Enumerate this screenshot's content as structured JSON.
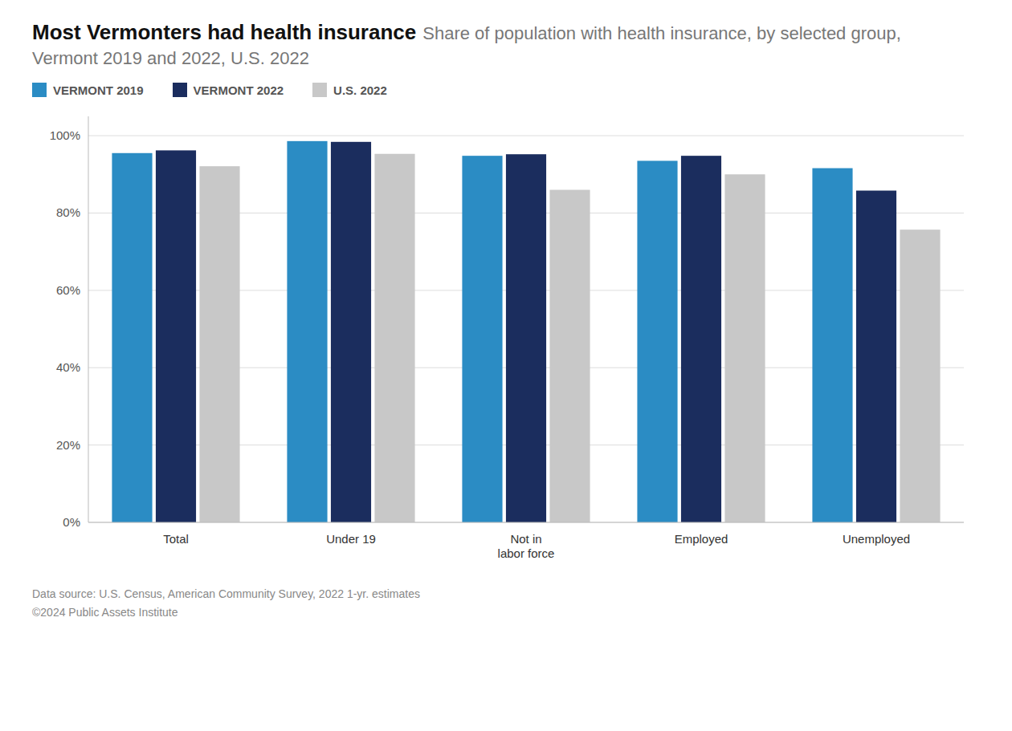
{
  "chart_data": {
    "type": "bar",
    "title": "Most Vermonters had health insurance",
    "subtitle": "Share of population with health insurance, by selected group, Vermont 2019 and 2022, U.S. 2022",
    "categories": [
      "Total",
      "Under 19",
      "Not in\nlabor force",
      "Employed",
      "Unemployed"
    ],
    "series": [
      {
        "name": "VERMONT 2019",
        "color": "#2b8cc4",
        "values": [
          0.955,
          0.986,
          0.948,
          0.935,
          0.916
        ]
      },
      {
        "name": "VERMONT 2022",
        "color": "#1b2d5e",
        "values": [
          0.962,
          0.984,
          0.952,
          0.948,
          0.858
        ]
      },
      {
        "name": "U.S. 2022",
        "color": "#c8c8c8",
        "values": [
          0.921,
          0.953,
          0.86,
          0.9,
          0.757
        ]
      }
    ],
    "ylim": [
      0,
      1.05
    ],
    "yticks": [
      {
        "value": 0,
        "label": "0%"
      },
      {
        "value": 0.2,
        "label": "20%"
      },
      {
        "value": 0.4,
        "label": "40%"
      },
      {
        "value": 0.6,
        "label": "60%"
      },
      {
        "value": 0.8,
        "label": "80%"
      },
      {
        "value": 1.0,
        "label": "100%"
      }
    ],
    "grid": true,
    "legend": "top",
    "annotations": [
      "Data source: U.S. Census, American Community Survey, 2022 1-yr. estimates",
      "©2024 Public Assets Institute"
    ]
  }
}
